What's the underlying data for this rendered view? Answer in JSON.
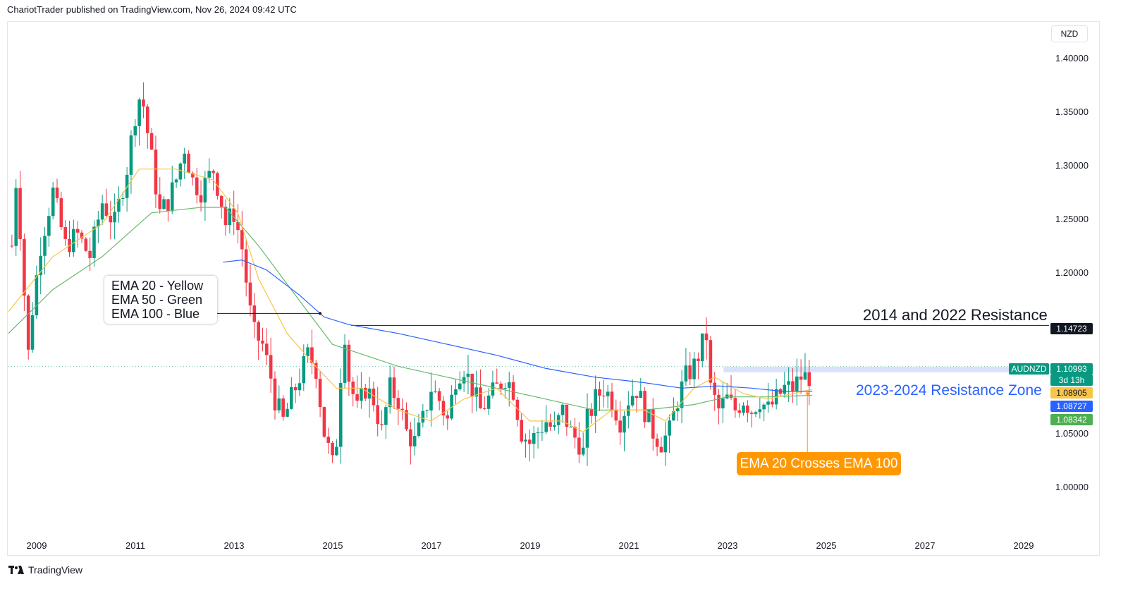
{
  "header": {
    "author": "ChariotTrader",
    "text": "published on TradingView.com, Nov 26, 2024 09:42 UTC"
  },
  "currency_label": "NZD",
  "price_axis_ticks": [
    "1.40000",
    "1.35000",
    "1.30000",
    "1.25000",
    "1.20000",
    "1.05000",
    "1.00000"
  ],
  "time_axis_ticks": [
    "2009",
    "2011",
    "2013",
    "2015",
    "2017",
    "2019",
    "2021",
    "2023",
    "2025",
    "2027",
    "2029"
  ],
  "price_labels": {
    "resistance": "1.14723",
    "symbol": "AUDNZD",
    "current": "1.10993",
    "countdown": "3d 13h",
    "ema20": "1.08905",
    "ema100": "1.08727",
    "ema50": "1.08342"
  },
  "annotations": {
    "legend_lines": [
      "EMA 20 - Yellow",
      "EMA 50 - Green",
      "EMA 100 - Blue"
    ],
    "resistance_label": "2014 and 2022 Resistance",
    "zone_label": "2023-2024 Resistance Zone",
    "cross_label": "EMA 20 Crosses EMA 100"
  },
  "footer": {
    "brand": "TradingView",
    "logo_icon": "tradingview-logo-icon"
  },
  "colors": {
    "up": "#089981",
    "down": "#f23645",
    "ema20": "#f7c548",
    "ema50": "#66bb6a",
    "ema100": "#2962ff",
    "zone": "#c9d6fb",
    "orange": "#ff9800",
    "black": "#131722"
  },
  "chart_data": {
    "type": "candlestick",
    "symbol": "AUDNZD",
    "interval": "monthly",
    "x_range": [
      2008.6,
      2029.7
    ],
    "y_range": [
      0.955,
      1.425
    ],
    "resistance_level": 1.14723,
    "resistance_zone": [
      1.1045,
      1.1095
    ],
    "close_path": [
      [
        2008.67,
        1.22
      ],
      [
        2008.75,
        1.28
      ],
      [
        2008.83,
        1.24
      ],
      [
        2009.0,
        1.12
      ],
      [
        2009.08,
        1.16
      ],
      [
        2009.25,
        1.22
      ],
      [
        2009.5,
        1.27
      ],
      [
        2009.75,
        1.22
      ],
      [
        2010.0,
        1.23
      ],
      [
        2010.25,
        1.21
      ],
      [
        2010.5,
        1.26
      ],
      [
        2010.75,
        1.24
      ],
      [
        2011.0,
        1.29
      ],
      [
        2011.17,
        1.34
      ],
      [
        2011.25,
        1.355
      ],
      [
        2011.33,
        1.35
      ],
      [
        2011.5,
        1.3
      ],
      [
        2011.67,
        1.25
      ],
      [
        2011.83,
        1.26
      ],
      [
        2012.0,
        1.28
      ],
      [
        2012.17,
        1.31
      ],
      [
        2012.33,
        1.28
      ],
      [
        2012.5,
        1.27
      ],
      [
        2012.75,
        1.29
      ],
      [
        2012.92,
        1.26
      ],
      [
        2013.0,
        1.24
      ],
      [
        2013.17,
        1.25
      ],
      [
        2013.33,
        1.22
      ],
      [
        2013.5,
        1.16
      ],
      [
        2013.58,
        1.14
      ],
      [
        2013.75,
        1.13
      ],
      [
        2013.92,
        1.1
      ],
      [
        2014.0,
        1.08
      ],
      [
        2014.17,
        1.06
      ],
      [
        2014.33,
        1.08
      ],
      [
        2014.5,
        1.1
      ],
      [
        2014.67,
        1.12
      ],
      [
        2014.83,
        1.11
      ],
      [
        2015.0,
        1.05
      ],
      [
        2015.17,
        1.02
      ],
      [
        2015.25,
        1.04
      ],
      [
        2015.33,
        1.1
      ],
      [
        2015.42,
        1.14
      ],
      [
        2015.5,
        1.1
      ],
      [
        2015.67,
        1.07
      ],
      [
        2015.83,
        1.09
      ],
      [
        2016.0,
        1.08
      ],
      [
        2016.17,
        1.05
      ],
      [
        2016.33,
        1.09
      ],
      [
        2016.5,
        1.08
      ],
      [
        2016.67,
        1.05
      ],
      [
        2016.83,
        1.04
      ],
      [
        2017.0,
        1.06
      ],
      [
        2017.17,
        1.09
      ],
      [
        2017.33,
        1.08
      ],
      [
        2017.5,
        1.06
      ],
      [
        2017.67,
        1.1
      ],
      [
        2017.83,
        1.11
      ],
      [
        2018.0,
        1.09
      ],
      [
        2018.17,
        1.07
      ],
      [
        2018.33,
        1.08
      ],
      [
        2018.5,
        1.09
      ],
      [
        2018.67,
        1.1
      ],
      [
        2018.83,
        1.09
      ],
      [
        2019.0,
        1.05
      ],
      [
        2019.17,
        1.04
      ],
      [
        2019.33,
        1.05
      ],
      [
        2019.5,
        1.06
      ],
      [
        2019.67,
        1.05
      ],
      [
        2019.83,
        1.07
      ],
      [
        2020.0,
        1.05
      ],
      [
        2020.17,
        1.04
      ],
      [
        2020.25,
        1.03
      ],
      [
        2020.33,
        1.06
      ],
      [
        2020.5,
        1.08
      ],
      [
        2020.67,
        1.09
      ],
      [
        2020.83,
        1.08
      ],
      [
        2021.0,
        1.06
      ],
      [
        2021.17,
        1.08
      ],
      [
        2021.33,
        1.09
      ],
      [
        2021.5,
        1.07
      ],
      [
        2021.67,
        1.05
      ],
      [
        2021.83,
        1.04
      ],
      [
        2022.0,
        1.05
      ],
      [
        2022.17,
        1.08
      ],
      [
        2022.33,
        1.1
      ],
      [
        2022.5,
        1.11
      ],
      [
        2022.67,
        1.13
      ],
      [
        2022.75,
        1.14
      ],
      [
        2022.83,
        1.09
      ],
      [
        2023.0,
        1.07
      ],
      [
        2023.17,
        1.08
      ],
      [
        2023.33,
        1.07
      ],
      [
        2023.5,
        1.08
      ],
      [
        2023.67,
        1.07
      ],
      [
        2023.83,
        1.08
      ],
      [
        2024.0,
        1.07
      ],
      [
        2024.17,
        1.08
      ],
      [
        2024.33,
        1.09
      ],
      [
        2024.5,
        1.09
      ],
      [
        2024.67,
        1.1
      ],
      [
        2024.83,
        1.0999
      ],
      [
        2024.9,
        1.10993
      ]
    ],
    "ema20_path": [
      [
        2008.6,
        1.16
      ],
      [
        2009.5,
        1.21
      ],
      [
        2010.5,
        1.24
      ],
      [
        2011.25,
        1.29
      ],
      [
        2012.0,
        1.29
      ],
      [
        2012.75,
        1.28
      ],
      [
        2013.25,
        1.25
      ],
      [
        2013.67,
        1.19
      ],
      [
        2014.25,
        1.14
      ],
      [
        2014.83,
        1.11
      ],
      [
        2015.25,
        1.09
      ],
      [
        2015.75,
        1.09
      ],
      [
        2016.5,
        1.07
      ],
      [
        2017.17,
        1.06
      ],
      [
        2017.83,
        1.08
      ],
      [
        2018.5,
        1.09
      ],
      [
        2019.17,
        1.06
      ],
      [
        2019.83,
        1.06
      ],
      [
        2020.25,
        1.05
      ],
      [
        2020.83,
        1.07
      ],
      [
        2021.5,
        1.07
      ],
      [
        2021.92,
        1.06
      ],
      [
        2022.5,
        1.09
      ],
      [
        2022.92,
        1.1
      ],
      [
        2023.5,
        1.085
      ],
      [
        2024.0,
        1.08
      ],
      [
        2024.5,
        1.085
      ],
      [
        2024.9,
        1.08905
      ]
    ],
    "ema50_path": [
      [
        2008.6,
        1.14
      ],
      [
        2009.5,
        1.18
      ],
      [
        2010.5,
        1.21
      ],
      [
        2011.5,
        1.25
      ],
      [
        2012.5,
        1.255
      ],
      [
        2013.0,
        1.255
      ],
      [
        2013.67,
        1.22
      ],
      [
        2014.5,
        1.17
      ],
      [
        2015.17,
        1.13
      ],
      [
        2015.83,
        1.12
      ],
      [
        2016.5,
        1.11
      ],
      [
        2017.5,
        1.1
      ],
      [
        2018.5,
        1.09
      ],
      [
        2019.5,
        1.08
      ],
      [
        2020.5,
        1.07
      ],
      [
        2021.5,
        1.07
      ],
      [
        2022.5,
        1.075
      ],
      [
        2023.17,
        1.082
      ],
      [
        2024.0,
        1.082
      ],
      [
        2024.9,
        1.08342
      ]
    ],
    "ema100_path": [
      [
        2012.95,
        1.205
      ],
      [
        2013.33,
        1.207
      ],
      [
        2013.83,
        1.198
      ],
      [
        2014.5,
        1.175
      ],
      [
        2015.0,
        1.155
      ],
      [
        2015.5,
        1.148
      ],
      [
        2016.5,
        1.14
      ],
      [
        2017.5,
        1.13
      ],
      [
        2018.5,
        1.12
      ],
      [
        2019.5,
        1.108
      ],
      [
        2020.5,
        1.1
      ],
      [
        2021.5,
        1.095
      ],
      [
        2022.25,
        1.09
      ],
      [
        2023.0,
        1.092
      ],
      [
        2023.67,
        1.09
      ],
      [
        2024.33,
        1.087
      ],
      [
        2024.9,
        1.08727
      ]
    ],
    "ema_cross_point": [
      2024.8,
      1.085
    ]
  }
}
